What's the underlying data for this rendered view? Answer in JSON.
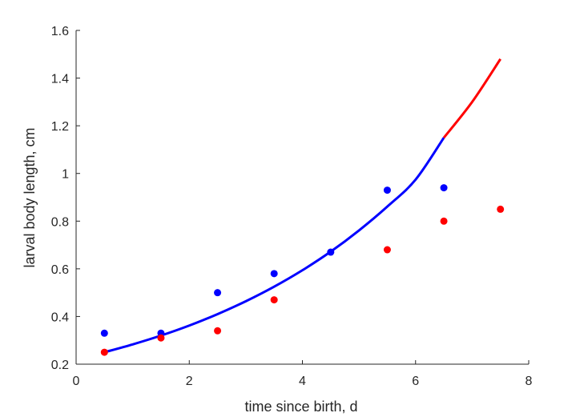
{
  "chart_data": {
    "type": "scatter",
    "title": "",
    "xlabel": "time since birth, d",
    "ylabel": "larval body length, cm",
    "xlim": [
      0,
      8
    ],
    "ylim": [
      0.2,
      1.6
    ],
    "xticks": [
      "0",
      "2",
      "4",
      "6",
      "8"
    ],
    "yticks": [
      "0.2",
      "0.4",
      "0.6",
      "0.8",
      "1",
      "1.2",
      "1.4",
      "1.6"
    ],
    "grid": false,
    "legend": "none",
    "series": [
      {
        "kind": "points",
        "color": "#0000ff",
        "x": [
          0.5,
          1.5,
          2.5,
          3.5,
          4.5,
          5.5,
          6.5
        ],
        "y": [
          0.33,
          0.33,
          0.5,
          0.58,
          0.67,
          0.93,
          0.94
        ]
      },
      {
        "kind": "points",
        "color": "#ff0000",
        "x": [
          0.5,
          1.5,
          2.5,
          3.5,
          5.5,
          6.5,
          7.5
        ],
        "y": [
          0.25,
          0.31,
          0.34,
          0.47,
          0.68,
          0.8,
          0.85
        ]
      },
      {
        "kind": "line",
        "color": "#0000ff",
        "x": [
          0.5,
          1.0,
          1.5,
          2.0,
          2.5,
          3.0,
          3.5,
          4.0,
          4.5,
          5.0,
          5.5,
          6.0,
          6.5
        ],
        "y": [
          0.25,
          0.283,
          0.32,
          0.362,
          0.41,
          0.464,
          0.525,
          0.594,
          0.672,
          0.761,
          0.861,
          0.974,
          1.15
        ]
      },
      {
        "kind": "line",
        "color": "#ff0000",
        "x": [
          6.5,
          7.0,
          7.5
        ],
        "y": [
          1.15,
          1.3,
          1.48
        ]
      }
    ]
  }
}
